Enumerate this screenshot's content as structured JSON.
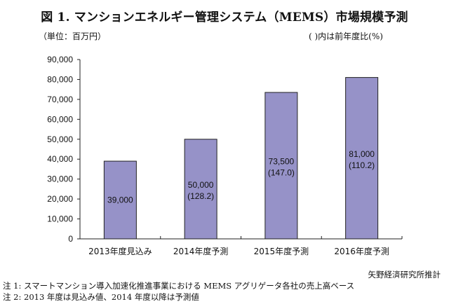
{
  "header": {
    "title": "図 1.  マンションエネルギー管理システム（MEMS）市場規模予測",
    "unit": "（単位：百万円）",
    "ratio_note": "(  )内は前年度比(%)"
  },
  "chart_data": {
    "type": "bar",
    "title": "図 1.  マンションエネルギー管理システム（MEMS）市場規模予測",
    "xlabel": "",
    "ylabel": "（単位：百万円）",
    "categories": [
      "2013年度見込み",
      "2014年度予測",
      "2015年度予測",
      "2016年度予測"
    ],
    "values": [
      39000,
      50000,
      73500,
      81000
    ],
    "yoy_percent": [
      null,
      128.2,
      147.0,
      110.2
    ],
    "data_labels": [
      "39,000",
      "50,000",
      "73,500",
      "81,000"
    ],
    "yoy_labels": [
      "",
      "(128.2)",
      "(147.0)",
      "(110.2)"
    ],
    "ylim": [
      0,
      90000
    ],
    "yticks": [
      0,
      10000,
      20000,
      30000,
      40000,
      50000,
      60000,
      70000,
      80000,
      90000
    ],
    "ytick_labels": [
      "0",
      "10,000",
      "20,000",
      "30,000",
      "40,000",
      "50,000",
      "60,000",
      "70,000",
      "80,000",
      "90,000"
    ],
    "grid": false,
    "legend": "none",
    "bar_color": "#9692c8",
    "bar_edge_color": "#222222"
  },
  "footer": {
    "source": "矢野経済研究所推計",
    "note1": "注 1:  スマートマンション導入加速化推進事業における MEMS アグリゲータ各社の売上高ベース",
    "note2": "注 2: 2013 年度は見込み値、2014 年度以降は予測値"
  }
}
